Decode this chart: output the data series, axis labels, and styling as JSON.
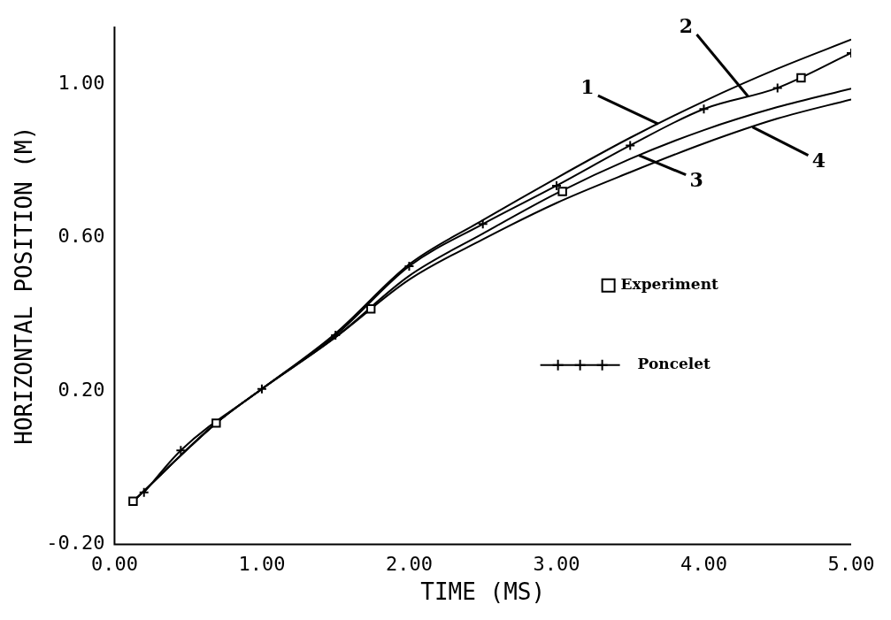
{
  "chart_data": {
    "type": "line",
    "xlabel": "TIME (MS)",
    "ylabel": "HORIZONTAL POSITION (M)",
    "xlim": [
      0,
      5
    ],
    "ylim": [
      -0.2,
      1.15
    ],
    "xticks": [
      {
        "value": 0,
        "label": "0.00"
      },
      {
        "value": 1,
        "label": "1.00"
      },
      {
        "value": 2,
        "label": "2.00"
      },
      {
        "value": 3,
        "label": "3.00"
      },
      {
        "value": 4,
        "label": "4.00"
      },
      {
        "value": 5,
        "label": "5.00"
      }
    ],
    "yticks": [
      {
        "value": -0.2,
        "label": "-0.20"
      },
      {
        "value": 0.2,
        "label": "0.20"
      },
      {
        "value": 0.6,
        "label": "0.60"
      },
      {
        "value": 1.0,
        "label": "1.00"
      }
    ],
    "x": [
      0.126,
      0.69,
      1.0,
      1.5,
      2.0,
      2.5,
      3.0,
      3.5,
      4.0,
      4.5,
      5.0
    ],
    "series": [
      {
        "color": "#000000",
        "values": [
          -0.088,
          0.116,
          0.205,
          0.35,
          0.53,
          0.645,
          0.755,
          0.86,
          0.955,
          1.04,
          1.116
        ]
      },
      {
        "name": "Poncelet",
        "color": "#000000",
        "marker": "cross",
        "x": [
          0.2,
          0.45,
          1.0,
          1.5,
          2.0,
          2.5,
          3.0,
          3.5,
          4.0,
          4.5,
          5.0
        ],
        "values": [
          -0.065,
          0.045,
          0.205,
          0.345,
          0.525,
          0.635,
          0.735,
          0.84,
          0.935,
          0.99,
          1.081
        ]
      },
      {
        "color": "#000000",
        "values": [
          -0.088,
          0.116,
          0.205,
          0.34,
          0.5,
          0.61,
          0.715,
          0.805,
          0.88,
          0.94,
          0.988
        ]
      },
      {
        "color": "#000000",
        "values": [
          -0.088,
          0.116,
          0.205,
          0.34,
          0.49,
          0.595,
          0.69,
          0.77,
          0.845,
          0.91,
          0.96
        ]
      },
      {
        "name": "Experiment",
        "type": "scatter",
        "color": "#000000",
        "marker": "square",
        "x": [
          0.126,
          0.69,
          1.74,
          3.04,
          4.66
        ],
        "values": [
          -0.088,
          0.116,
          0.414,
          0.72,
          1.016
        ]
      }
    ],
    "annotations": [
      {
        "text": "1",
        "x": 3.69,
        "y": 0.896
      },
      {
        "text": "2",
        "x": 4.3,
        "y": 0.968
      },
      {
        "text": "3",
        "x": 3.56,
        "y": 0.814
      },
      {
        "text": "4",
        "x": 4.33,
        "y": 0.888
      }
    ],
    "legend": "right",
    "grid": false
  }
}
